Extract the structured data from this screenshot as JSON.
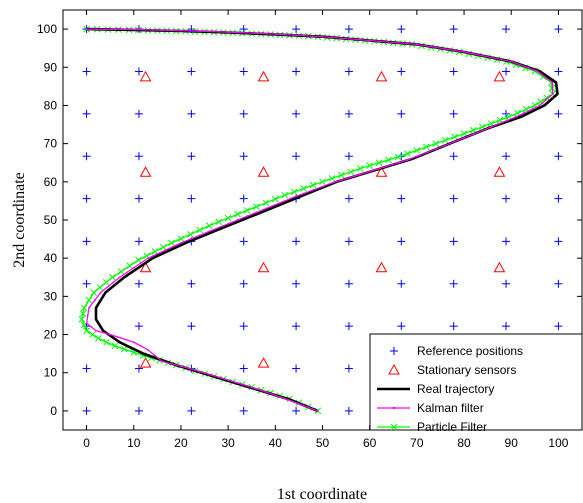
{
  "chart_data": {
    "type": "line",
    "xlabel": "1st coordinate",
    "ylabel": "2nd coordinate",
    "xlim": [
      -5,
      105
    ],
    "ylim": [
      -5,
      105
    ],
    "xticks": [
      0,
      10,
      20,
      30,
      40,
      50,
      60,
      70,
      80,
      90,
      100
    ],
    "yticks": [
      0,
      10,
      20,
      30,
      40,
      50,
      60,
      70,
      80,
      90,
      100
    ],
    "grid": false,
    "legend_position": "bottom-right",
    "colors": {
      "reference": "#0000ff",
      "sensors": "#ff0000",
      "real": "#000000",
      "kalman": "#ff00ff",
      "particle": "#00ff00"
    },
    "series": [
      {
        "name": "Reference positions",
        "kind": "marker-plus",
        "x_values": [
          0,
          11.1,
          22.2,
          33.3,
          44.4,
          55.6,
          66.7,
          77.8,
          88.9,
          100
        ],
        "y_values": [
          0,
          11.1,
          22.2,
          33.3,
          44.4,
          55.6,
          66.7,
          77.8,
          88.9,
          100
        ]
      },
      {
        "name": "Stationary sensors",
        "kind": "marker-triangle",
        "x_values": [
          12.5,
          37.5,
          62.5,
          87.5
        ],
        "y_values": [
          12.5,
          37.5,
          62.5,
          87.5
        ]
      },
      {
        "name": "Real trajectory",
        "kind": "line",
        "points": [
          [
            49,
            0
          ],
          [
            43,
            3
          ],
          [
            35,
            6
          ],
          [
            27,
            9
          ],
          [
            19,
            12
          ],
          [
            12,
            15
          ],
          [
            7,
            18
          ],
          [
            3.5,
            21
          ],
          [
            2,
            24
          ],
          [
            2,
            27
          ],
          [
            4,
            31
          ],
          [
            8,
            35
          ],
          [
            14,
            40
          ],
          [
            21,
            44
          ],
          [
            29,
            48
          ],
          [
            37,
            52
          ],
          [
            45,
            56
          ],
          [
            53,
            60
          ],
          [
            61,
            63
          ],
          [
            69,
            66
          ],
          [
            77,
            70
          ],
          [
            85,
            74
          ],
          [
            92,
            77
          ],
          [
            97,
            80
          ],
          [
            99.8,
            83
          ],
          [
            99.5,
            86
          ],
          [
            96,
            89
          ],
          [
            90,
            91.5
          ],
          [
            80,
            94
          ],
          [
            70,
            96
          ],
          [
            60,
            97
          ],
          [
            50,
            98
          ],
          [
            40,
            98.6
          ],
          [
            30,
            99.1
          ],
          [
            20,
            99.5
          ],
          [
            10,
            99.8
          ],
          [
            0,
            100
          ]
        ]
      },
      {
        "name": "Kalman filter",
        "kind": "line",
        "points": [
          [
            49,
            0
          ],
          [
            43,
            2.8
          ],
          [
            36,
            5.8
          ],
          [
            28,
            8.8
          ],
          [
            20,
            11.7
          ],
          [
            16,
            13
          ],
          [
            13,
            16
          ],
          [
            10,
            18
          ],
          [
            5,
            20
          ],
          [
            2,
            21
          ],
          [
            0,
            23
          ],
          [
            0.5,
            27
          ],
          [
            3,
            31
          ],
          [
            7,
            35
          ],
          [
            13,
            40
          ],
          [
            20,
            44
          ],
          [
            28,
            48
          ],
          [
            36,
            52
          ],
          [
            44,
            56
          ],
          [
            52,
            59.7
          ],
          [
            60,
            62.7
          ],
          [
            68,
            65.7
          ],
          [
            76,
            69.5
          ],
          [
            84,
            73.5
          ],
          [
            91,
            77
          ],
          [
            96,
            80
          ],
          [
            98.8,
            83
          ],
          [
            98.7,
            86
          ],
          [
            95.5,
            89
          ],
          [
            90,
            91.5
          ],
          [
            80,
            94
          ],
          [
            70,
            96
          ],
          [
            60,
            97
          ],
          [
            50,
            98
          ],
          [
            40,
            98.7
          ],
          [
            30,
            99.2
          ],
          [
            20,
            99.6
          ],
          [
            10,
            99.9
          ],
          [
            0,
            100
          ]
        ]
      },
      {
        "name": "Particle Filter",
        "kind": "line-x",
        "points": [
          [
            49,
            0
          ],
          [
            43,
            3.2
          ],
          [
            35,
            6.2
          ],
          [
            27,
            9
          ],
          [
            19,
            12
          ],
          [
            12,
            14.5
          ],
          [
            6,
            17
          ],
          [
            2.5,
            19
          ],
          [
            0,
            21
          ],
          [
            -1,
            24
          ],
          [
            -0.5,
            27
          ],
          [
            1.5,
            31
          ],
          [
            5.5,
            35
          ],
          [
            11,
            39.5
          ],
          [
            18,
            44
          ],
          [
            26,
            48.5
          ],
          [
            34,
            52.5
          ],
          [
            42,
            56.5
          ],
          [
            50,
            60
          ],
          [
            58,
            63.5
          ],
          [
            66,
            66.5
          ],
          [
            74,
            70
          ],
          [
            82,
            73.5
          ],
          [
            89.5,
            77
          ],
          [
            95,
            80
          ],
          [
            98.8,
            83
          ],
          [
            98.5,
            86
          ],
          [
            95,
            89
          ],
          [
            89,
            91.5
          ],
          [
            79,
            94
          ],
          [
            69,
            96
          ],
          [
            59,
            97
          ],
          [
            49,
            98
          ],
          [
            39,
            98.6
          ],
          [
            29,
            99.1
          ],
          [
            19,
            99.5
          ],
          [
            9,
            99.8
          ],
          [
            0,
            100
          ]
        ]
      }
    ]
  }
}
